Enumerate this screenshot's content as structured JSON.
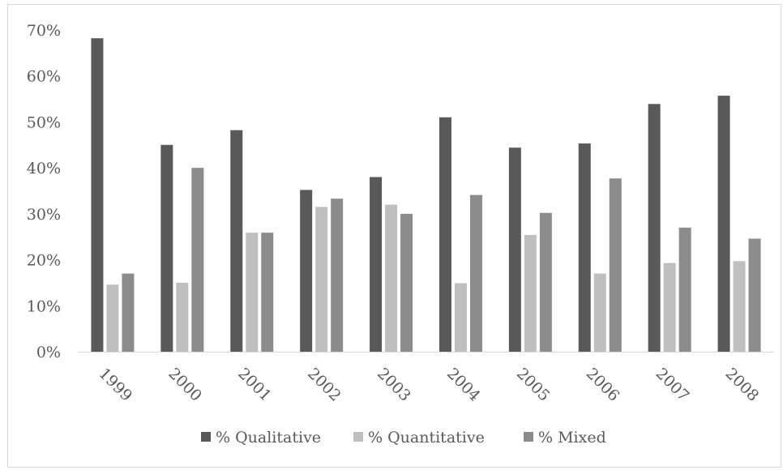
{
  "chart_data": {
    "type": "bar",
    "title": "",
    "xlabel": "",
    "ylabel": "",
    "categories": [
      "1999",
      "2000",
      "2001",
      "2002",
      "2003",
      "2004",
      "2005",
      "2006",
      "2007",
      "2008"
    ],
    "series": [
      {
        "name": "% Qualitative",
        "color": "#595959",
        "values": [
          68.2,
          45.0,
          48.2,
          35.2,
          38.0,
          51.0,
          44.4,
          45.3,
          53.9,
          55.7
        ]
      },
      {
        "name": "% Quantitative",
        "color": "#bfbfbf",
        "values": [
          14.6,
          15.0,
          25.9,
          31.5,
          32.0,
          14.9,
          25.4,
          17.0,
          19.3,
          19.7
        ]
      },
      {
        "name": "% Mixed",
        "color": "#8c8c8c",
        "values": [
          17.0,
          40.0,
          25.9,
          33.3,
          30.0,
          34.1,
          30.2,
          37.7,
          27.0,
          24.6
        ]
      }
    ],
    "ylim": [
      0,
      70
    ],
    "yticks": [
      "0%",
      "10%",
      "20%",
      "30%",
      "40%",
      "50%",
      "60%",
      "70%"
    ],
    "grid": false,
    "legend": "bottom"
  }
}
